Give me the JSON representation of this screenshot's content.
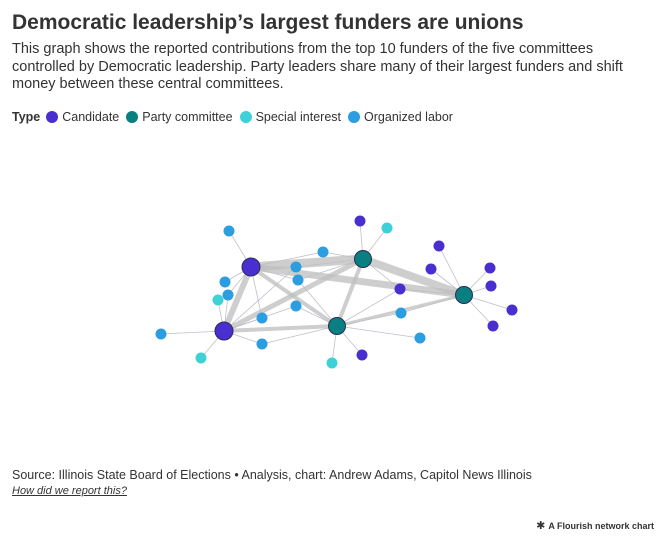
{
  "header": {
    "title": "Democratic leadership’s largest funders are unions",
    "subtitle": "This graph shows the reported contributions from the top 10 funders of the five committees controlled by Democratic leadership. Party leaders share many of their largest funders and shift money between these central committees."
  },
  "legend": {
    "title": "Type",
    "items": [
      {
        "label": "Candidate",
        "color": "#4a2fd0"
      },
      {
        "label": "Party committee",
        "color": "#0a7f82"
      },
      {
        "label": "Special interest",
        "color": "#3ed2d8"
      },
      {
        "label": "Organized labor",
        "color": "#2a9ee0"
      }
    ]
  },
  "footer": {
    "source": "Source: Illinois State Board of Elections • Analysis, chart: Andrew Adams, Capitol News Illinois",
    "method_link": "How did we report this?",
    "credit": "A Flourish network chart",
    "credit_icon": "flourish-icon"
  }
}
